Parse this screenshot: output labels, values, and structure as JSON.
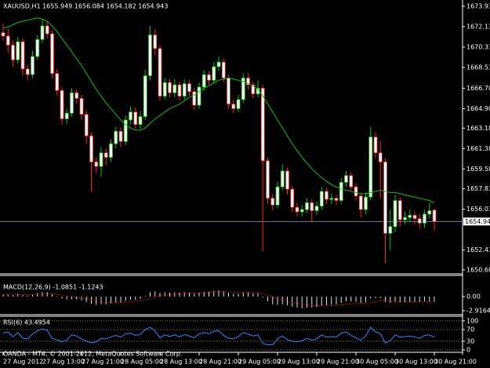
{
  "chart_data": {
    "type": "candlestick",
    "title": "XAUUSD,H1 1655.949 1656.084 1654.182 1654.943",
    "footer": "OANDA - MT4, © 2001-2012, MetaQuotes Software Corp.",
    "categories": [
      "27 Aug 2012",
      null,
      null,
      null,
      null,
      null,
      null,
      null,
      "27 Aug 13:00",
      null,
      null,
      null,
      null,
      null,
      null,
      null,
      "27 Aug 21:00",
      null,
      null,
      null,
      null,
      null,
      null,
      null,
      "28 Aug 05:00",
      null,
      null,
      null,
      null,
      null,
      null,
      null,
      "28 Aug 13:00",
      null,
      null,
      null,
      null,
      null,
      null,
      null,
      "28 Aug 21:00",
      null,
      null,
      null,
      null,
      null,
      null,
      null,
      "29 Aug 05:00",
      null,
      null,
      null,
      null,
      null,
      null,
      null,
      "29 Aug 13:00",
      null,
      null,
      null,
      null,
      null,
      null,
      null,
      "29 Aug 21:00",
      null,
      null,
      null,
      null,
      null,
      null,
      null,
      "30 Aug 05:00",
      null,
      null,
      null,
      null,
      null,
      null,
      null,
      "30 Aug 13:00",
      null,
      null,
      null,
      null,
      null,
      null,
      null,
      "30 Aug 21:00"
    ],
    "up_color": "#00c800",
    "down_color": "#ff2020",
    "body_color": "#ffffff",
    "open": [
      1671.6,
      1671.3,
      1670.5,
      1669.2,
      1670.8,
      1668.4,
      1667.9,
      1669.5,
      1671.0,
      1672.2,
      1671.5,
      1668.0,
      1666.5,
      1664.0,
      1664.5,
      1666.3,
      1665.8,
      1664.4,
      1662.5,
      1660.2,
      1659.8,
      1661.0,
      1660.6,
      1661.8,
      1662.9,
      1662.0,
      1663.9,
      1664.6,
      1663.5,
      1664.2,
      1667.8,
      1671.4,
      1670.2,
      1666.0,
      1667.2,
      1666.3,
      1667.0,
      1666.0,
      1667.1,
      1666.4,
      1665.2,
      1666.8,
      1667.9,
      1667.4,
      1668.6,
      1669.0,
      1667.6,
      1665.3,
      1664.9,
      1665.7,
      1667.6,
      1667.0,
      1666.2,
      1666.7,
      1660.3,
      1657.0,
      1656.4,
      1658.0,
      1659.4,
      1657.8,
      1656.2,
      1655.8,
      1656.0,
      1656.6,
      1655.9,
      1656.3,
      1657.6,
      1656.9,
      1657.0,
      1656.8,
      1658.4,
      1659.0,
      1658.0,
      1657.2,
      1656.0,
      1657.1,
      1662.4,
      1661.0,
      1660.2,
      1653.9,
      1654.5,
      1656.8,
      1655.1,
      1655.3,
      1655.5,
      1655.2,
      1654.8,
      1655.6,
      1655.949
    ],
    "high": [
      1672.4,
      1672.0,
      1670.9,
      1671.2,
      1671.1,
      1668.8,
      1670.0,
      1671.4,
      1672.8,
      1672.6,
      1671.8,
      1668.4,
      1666.8,
      1664.9,
      1666.7,
      1666.6,
      1666.1,
      1664.7,
      1662.8,
      1660.6,
      1661.5,
      1661.4,
      1662.2,
      1663.3,
      1663.2,
      1664.3,
      1665.1,
      1665.0,
      1664.7,
      1668.3,
      1672.2,
      1671.9,
      1670.5,
      1667.6,
      1667.5,
      1667.5,
      1667.3,
      1667.5,
      1667.4,
      1666.7,
      1667.2,
      1668.3,
      1668.2,
      1669.0,
      1669.5,
      1669.3,
      1667.9,
      1665.7,
      1666.1,
      1668.0,
      1668.0,
      1667.3,
      1667.4,
      1667.0,
      1660.6,
      1657.4,
      1658.5,
      1660.0,
      1659.7,
      1658.1,
      1656.6,
      1656.4,
      1657.0,
      1656.9,
      1656.7,
      1658.0,
      1657.9,
      1657.4,
      1657.3,
      1658.8,
      1659.4,
      1659.3,
      1658.3,
      1657.5,
      1657.5,
      1663.3,
      1662.8,
      1662.0,
      1660.5,
      1656.0,
      1657.3,
      1657.1,
      1655.8,
      1656.0,
      1655.8,
      1655.6,
      1656.0,
      1656.6,
      1656.084
    ],
    "low": [
      1670.9,
      1669.8,
      1668.6,
      1668.9,
      1667.8,
      1667.4,
      1667.6,
      1669.2,
      1670.7,
      1671.1,
      1667.6,
      1666.0,
      1663.5,
      1663.6,
      1664.2,
      1665.3,
      1663.9,
      1661.8,
      1657.6,
      1659.2,
      1658.9,
      1659.9,
      1660.2,
      1661.4,
      1661.5,
      1661.7,
      1663.5,
      1663.1,
      1663.1,
      1663.9,
      1667.4,
      1669.6,
      1665.6,
      1665.7,
      1665.9,
      1665.9,
      1665.6,
      1665.7,
      1666.0,
      1664.8,
      1664.9,
      1666.5,
      1667.0,
      1667.1,
      1668.2,
      1667.2,
      1664.9,
      1664.5,
      1664.6,
      1665.4,
      1666.6,
      1665.8,
      1665.9,
      1652.3,
      1656.5,
      1655.9,
      1656.1,
      1657.7,
      1657.3,
      1655.8,
      1655.4,
      1655.4,
      1655.7,
      1654.9,
      1655.5,
      1656.0,
      1656.5,
      1656.5,
      1656.4,
      1656.5,
      1658.0,
      1657.6,
      1656.8,
      1655.3,
      1655.6,
      1656.8,
      1660.5,
      1657.0,
      1651.3,
      1652.4,
      1654.0,
      1654.5,
      1654.7,
      1654.9,
      1654.7,
      1654.3,
      1654.4,
      1655.2,
      1654.182
    ],
    "close": [
      1671.3,
      1670.5,
      1669.2,
      1670.8,
      1668.4,
      1667.9,
      1669.5,
      1671.0,
      1672.2,
      1671.5,
      1668.0,
      1666.5,
      1664.0,
      1664.5,
      1666.3,
      1665.8,
      1664.4,
      1662.5,
      1660.2,
      1659.8,
      1661.0,
      1660.6,
      1661.8,
      1662.9,
      1662.0,
      1663.9,
      1664.6,
      1663.5,
      1664.2,
      1667.8,
      1671.4,
      1670.2,
      1666.0,
      1667.2,
      1666.3,
      1667.0,
      1666.0,
      1667.1,
      1666.4,
      1665.2,
      1666.8,
      1667.9,
      1667.4,
      1668.6,
      1669.0,
      1667.6,
      1665.3,
      1664.9,
      1665.7,
      1667.6,
      1667.0,
      1666.2,
      1666.7,
      1660.3,
      1657.0,
      1656.4,
      1658.0,
      1659.4,
      1657.8,
      1656.2,
      1655.8,
      1656.0,
      1656.6,
      1655.9,
      1656.3,
      1657.6,
      1656.9,
      1657.0,
      1656.8,
      1658.4,
      1659.0,
      1658.0,
      1657.2,
      1656.0,
      1657.1,
      1662.4,
      1661.0,
      1660.2,
      1653.9,
      1654.5,
      1656.8,
      1655.1,
      1655.3,
      1655.5,
      1655.2,
      1654.8,
      1655.6,
      1655.9,
      1654.943
    ],
    "ma": {
      "color": "#00c800",
      "values": [
        1672.0,
        1672.1,
        1672.3,
        1672.5,
        1672.6,
        1672.7,
        1672.8,
        1672.9,
        1672.8,
        1672.6,
        1672.2,
        1671.7,
        1671.1,
        1670.5,
        1669.9,
        1669.3,
        1668.7,
        1668.0,
        1667.3,
        1666.6,
        1666.0,
        1665.4,
        1664.9,
        1664.4,
        1663.9,
        1663.5,
        1663.2,
        1663.0,
        1663.0,
        1663.2,
        1663.6,
        1664.0,
        1664.3,
        1664.6,
        1664.9,
        1665.1,
        1665.3,
        1665.6,
        1665.9,
        1666.1,
        1666.4,
        1666.7,
        1666.9,
        1667.2,
        1667.4,
        1667.5,
        1667.6,
        1667.5,
        1667.4,
        1667.3,
        1667.1,
        1666.9,
        1666.6,
        1666.0,
        1665.3,
        1664.6,
        1663.9,
        1663.2,
        1662.5,
        1661.8,
        1661.2,
        1660.6,
        1660.1,
        1659.6,
        1659.2,
        1658.8,
        1658.5,
        1658.2,
        1658.0,
        1657.8,
        1657.7,
        1657.6,
        1657.5,
        1657.4,
        1657.4,
        1657.5,
        1657.6,
        1657.7,
        1657.6,
        1657.5,
        1657.5,
        1657.4,
        1657.3,
        1657.2,
        1657.1,
        1657.0,
        1656.9,
        1656.8,
        1656.6
      ]
    },
    "ylim": [
      1650.4,
      1674.48
    ],
    "yticks": [
      1673.93,
      1672.13,
      1670.33,
      1668.53,
      {
        "value": 1666.7,
        "label": "1666.70"
      },
      {
        "value": 1664.9,
        "label": "1664.90"
      },
      1663.18,
      1661.38,
      1659.58,
      1657.83,
      1656.03,
      1652.43,
      1650.68
    ],
    "current_price": {
      "value": 1654.943,
      "label": "1654.94"
    },
    "macd": {
      "label": "MACD(12,26,9) -1.0851 -1.1243",
      "hist_color": "#e0e0e0",
      "signal_color": "#ff2020",
      "histogram": [
        0.4,
        0.4,
        0.3,
        0.5,
        0.3,
        0.2,
        0.4,
        0.7,
        0.9,
        0.9,
        0.5,
        0.1,
        -0.4,
        -0.6,
        -0.5,
        -0.6,
        -0.8,
        -1.1,
        -1.5,
        -1.7,
        -1.6,
        -1.6,
        -1.4,
        -1.2,
        -1.2,
        -0.9,
        -0.7,
        -0.7,
        -0.5,
        0.1,
        0.9,
        1.1,
        0.8,
        0.9,
        0.8,
        0.9,
        0.8,
        0.9,
        0.8,
        0.7,
        0.8,
        1.0,
        1.0,
        1.2,
        1.3,
        1.1,
        0.8,
        0.6,
        0.6,
        0.8,
        0.8,
        0.7,
        0.7,
        -0.2,
        -1.0,
        -1.6,
        -1.7,
        -1.6,
        -1.8,
        -2.1,
        -2.3,
        -2.4,
        -2.3,
        -2.3,
        -2.2,
        -1.9,
        -1.8,
        -1.7,
        -1.6,
        -1.3,
        -1.0,
        -1.0,
        -1.1,
        -1.3,
        -1.2,
        -0.4,
        -0.3,
        -0.3,
        -1.1,
        -1.3,
        -1.1,
        -1.2,
        -1.2,
        -1.1,
        -1.1,
        -1.1,
        -1.0,
        -1.0,
        -1.0851
      ],
      "signal": [
        0.5,
        0.5,
        0.5,
        0.5,
        0.4,
        0.4,
        0.4,
        0.5,
        0.5,
        0.6,
        0.6,
        0.5,
        0.3,
        0.1,
        0.0,
        -0.2,
        -0.3,
        -0.5,
        -0.7,
        -0.9,
        -1.1,
        -1.2,
        -1.2,
        -1.2,
        -1.2,
        -1.2,
        -1.1,
        -1.0,
        -0.9,
        -0.7,
        -0.4,
        -0.1,
        0.1,
        0.3,
        0.4,
        0.5,
        0.6,
        0.6,
        0.7,
        0.7,
        0.7,
        0.8,
        0.8,
        0.9,
        1.0,
        1.0,
        1.0,
        0.9,
        0.9,
        0.9,
        0.9,
        0.8,
        0.8,
        0.6,
        0.3,
        -0.1,
        -0.4,
        -0.6,
        -0.9,
        -1.1,
        -1.4,
        -1.6,
        -1.7,
        -1.8,
        -1.9,
        -1.9,
        -1.9,
        -1.9,
        -1.8,
        -1.7,
        -1.6,
        -1.5,
        -1.4,
        -1.4,
        -1.4,
        -1.2,
        -1.0,
        -0.9,
        -0.9,
        -1.0,
        -1.0,
        -1.0,
        -1.1,
        -1.1,
        -1.1,
        -1.1,
        -1.1,
        -1.1,
        -1.1243
      ],
      "ylim": [
        -3.57,
        4.21
      ],
      "yticks": [
        {
          "value": 0,
          "label": "0.00"
        },
        -2.9164
      ]
    },
    "rsi": {
      "label": "RSI(6) 43.4954",
      "color": "#1e90ff",
      "grid": true,
      "values": [
        58,
        62,
        45,
        60,
        40,
        38,
        55,
        66,
        72,
        68,
        40,
        35,
        28,
        34,
        52,
        48,
        38,
        30,
        25,
        28,
        40,
        38,
        45,
        50,
        44,
        55,
        58,
        50,
        54,
        70,
        78,
        66,
        42,
        52,
        46,
        52,
        45,
        53,
        48,
        42,
        55,
        60,
        56,
        64,
        66,
        50,
        40,
        38,
        46,
        60,
        55,
        48,
        52,
        22,
        18,
        18,
        38,
        48,
        36,
        30,
        28,
        32,
        40,
        34,
        38,
        52,
        44,
        46,
        44,
        58,
        62,
        50,
        42,
        34,
        48,
        78,
        62,
        56,
        24,
        32,
        52,
        44,
        46,
        48,
        45,
        40,
        50,
        52,
        43.4954
      ],
      "ylim": [
        -5.3,
        113.2
      ],
      "yticks": [
        100,
        70,
        30,
        0
      ]
    }
  }
}
